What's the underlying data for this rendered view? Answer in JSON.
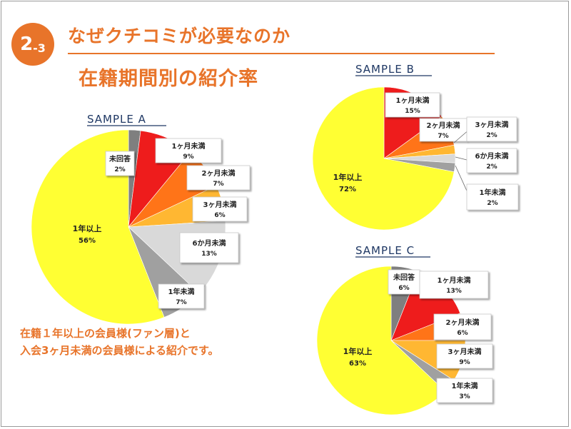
{
  "slide": {
    "badge_number": "2",
    "badge_sub": "-3",
    "title": "なぜクチコミが必要なのか",
    "subtitle": "在籍期間別の紹介率",
    "caption_line1": "在籍１年以上の会員様(ファン層)と",
    "caption_line2": "入会3ヶ月未満の会員様による紹介です。"
  },
  "colors": {
    "accent": "#e8742a",
    "yellow": "#ffff33",
    "red": "#ee1c1c",
    "orange": "#ff7418",
    "light_orange": "#ffb732",
    "light_gray": "#d9d9d9",
    "gray": "#a0a0a0",
    "dark_gray": "#7f7f7f",
    "title_blue": "#1f3864"
  },
  "chart_data": [
    {
      "type": "pie",
      "title": "SAMPLE A",
      "slices": [
        {
          "label": "未回答",
          "value": 2,
          "display": "2%",
          "color": "#7f7f7f"
        },
        {
          "label": "1ヶ月未満",
          "value": 9,
          "display": "9%",
          "color": "#ee1c1c"
        },
        {
          "label": "2ヶ月未満",
          "value": 7,
          "display": "7%",
          "color": "#ff7418"
        },
        {
          "label": "3ヶ月未満",
          "value": 6,
          "display": "6%",
          "color": "#ffb732"
        },
        {
          "label": "6か月未満",
          "value": 13,
          "display": "13%",
          "color": "#d9d9d9"
        },
        {
          "label": "1年未満",
          "value": 7,
          "display": "7%",
          "color": "#a0a0a0"
        },
        {
          "label": "1年以上",
          "value": 56,
          "display": "56%",
          "color": "#ffff33"
        }
      ]
    },
    {
      "type": "pie",
      "title": "SAMPLE B",
      "slices": [
        {
          "label": "1ヶ月未満",
          "value": 15,
          "display": "15%",
          "color": "#ee1c1c"
        },
        {
          "label": "2ヶ月未満",
          "value": 7,
          "display": "7%",
          "color": "#ff7418"
        },
        {
          "label": "3ヶ月未満",
          "value": 2,
          "display": "2%",
          "color": "#ffb732"
        },
        {
          "label": "6か月未満",
          "value": 2,
          "display": "2%",
          "color": "#d9d9d9"
        },
        {
          "label": "1年未満",
          "value": 2,
          "display": "2%",
          "color": "#a0a0a0"
        },
        {
          "label": "1年以上",
          "value": 72,
          "display": "72%",
          "color": "#ffff33"
        }
      ]
    },
    {
      "type": "pie",
      "title": "SAMPLE C",
      "slices": [
        {
          "label": "未回答",
          "value": 6,
          "display": "6%",
          "color": "#7f7f7f"
        },
        {
          "label": "1ヶ月未満",
          "value": 13,
          "display": "13%",
          "color": "#ee1c1c"
        },
        {
          "label": "2ヶ月未満",
          "value": 6,
          "display": "6%",
          "color": "#ff7418"
        },
        {
          "label": "3ヶ月未満",
          "value": 9,
          "display": "9%",
          "color": "#ffb732"
        },
        {
          "label": "1年未満",
          "value": 3,
          "display": "3%",
          "color": "#a0a0a0"
        },
        {
          "label": "1年以上",
          "value": 63,
          "display": "63%",
          "color": "#ffff33"
        }
      ]
    }
  ]
}
